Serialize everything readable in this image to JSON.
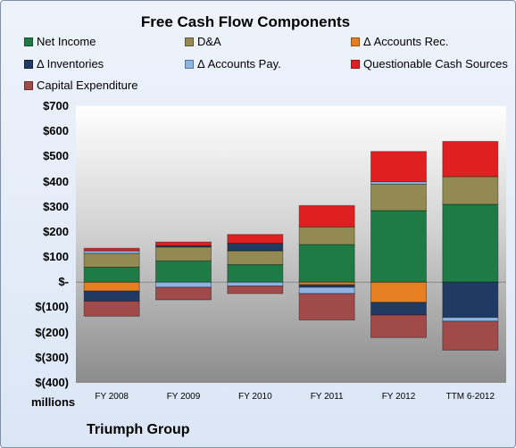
{
  "chart_data": {
    "type": "bar",
    "stacked": true,
    "title": "Free Cash Flow Components",
    "units_label": "millions",
    "footer": "Triumph Group",
    "categories": [
      "FY 2008",
      "FY 2009",
      "FY 2010",
      "FY 2011",
      "FY 2012",
      "TTM 6-2012"
    ],
    "ylim": [
      -400,
      700
    ],
    "yticks": [
      "$700",
      "$600",
      "$500",
      "$400",
      "$300",
      "$200",
      "$100",
      "$-",
      "$(100)",
      "$(200)",
      "$(300)",
      "$(400)"
    ],
    "ytick_values": [
      700,
      600,
      500,
      400,
      300,
      200,
      100,
      0,
      -100,
      -200,
      -300,
      -400
    ],
    "series": [
      {
        "name": "Net Income",
        "color": "#1e7b45",
        "values": [
          60,
          85,
          70,
          150,
          285,
          310
        ]
      },
      {
        "name": "D&A",
        "color": "#938953",
        "values": [
          55,
          55,
          55,
          70,
          105,
          110
        ]
      },
      {
        "name": "Δ Accounts Rec.",
        "color": "#e67e22",
        "values": [
          -35,
          0,
          0,
          -10,
          -80,
          0
        ]
      },
      {
        "name": "Δ Inventories",
        "color": "#1f3a63",
        "values": [
          -40,
          5,
          30,
          -10,
          -50,
          -140
        ]
      },
      {
        "name": "Δ Accounts Pay.",
        "color": "#8db4e2",
        "values": [
          10,
          -20,
          -15,
          -25,
          10,
          -15
        ]
      },
      {
        "name": "Questionable Cash Sources",
        "color": "#e02020",
        "values": [
          10,
          15,
          35,
          85,
          120,
          140
        ]
      },
      {
        "name": "Capital Expenditure",
        "color": "#a04a4a",
        "values": [
          -60,
          -50,
          -30,
          -105,
          -90,
          -115
        ]
      }
    ],
    "grid": false,
    "legend_position": "top"
  }
}
